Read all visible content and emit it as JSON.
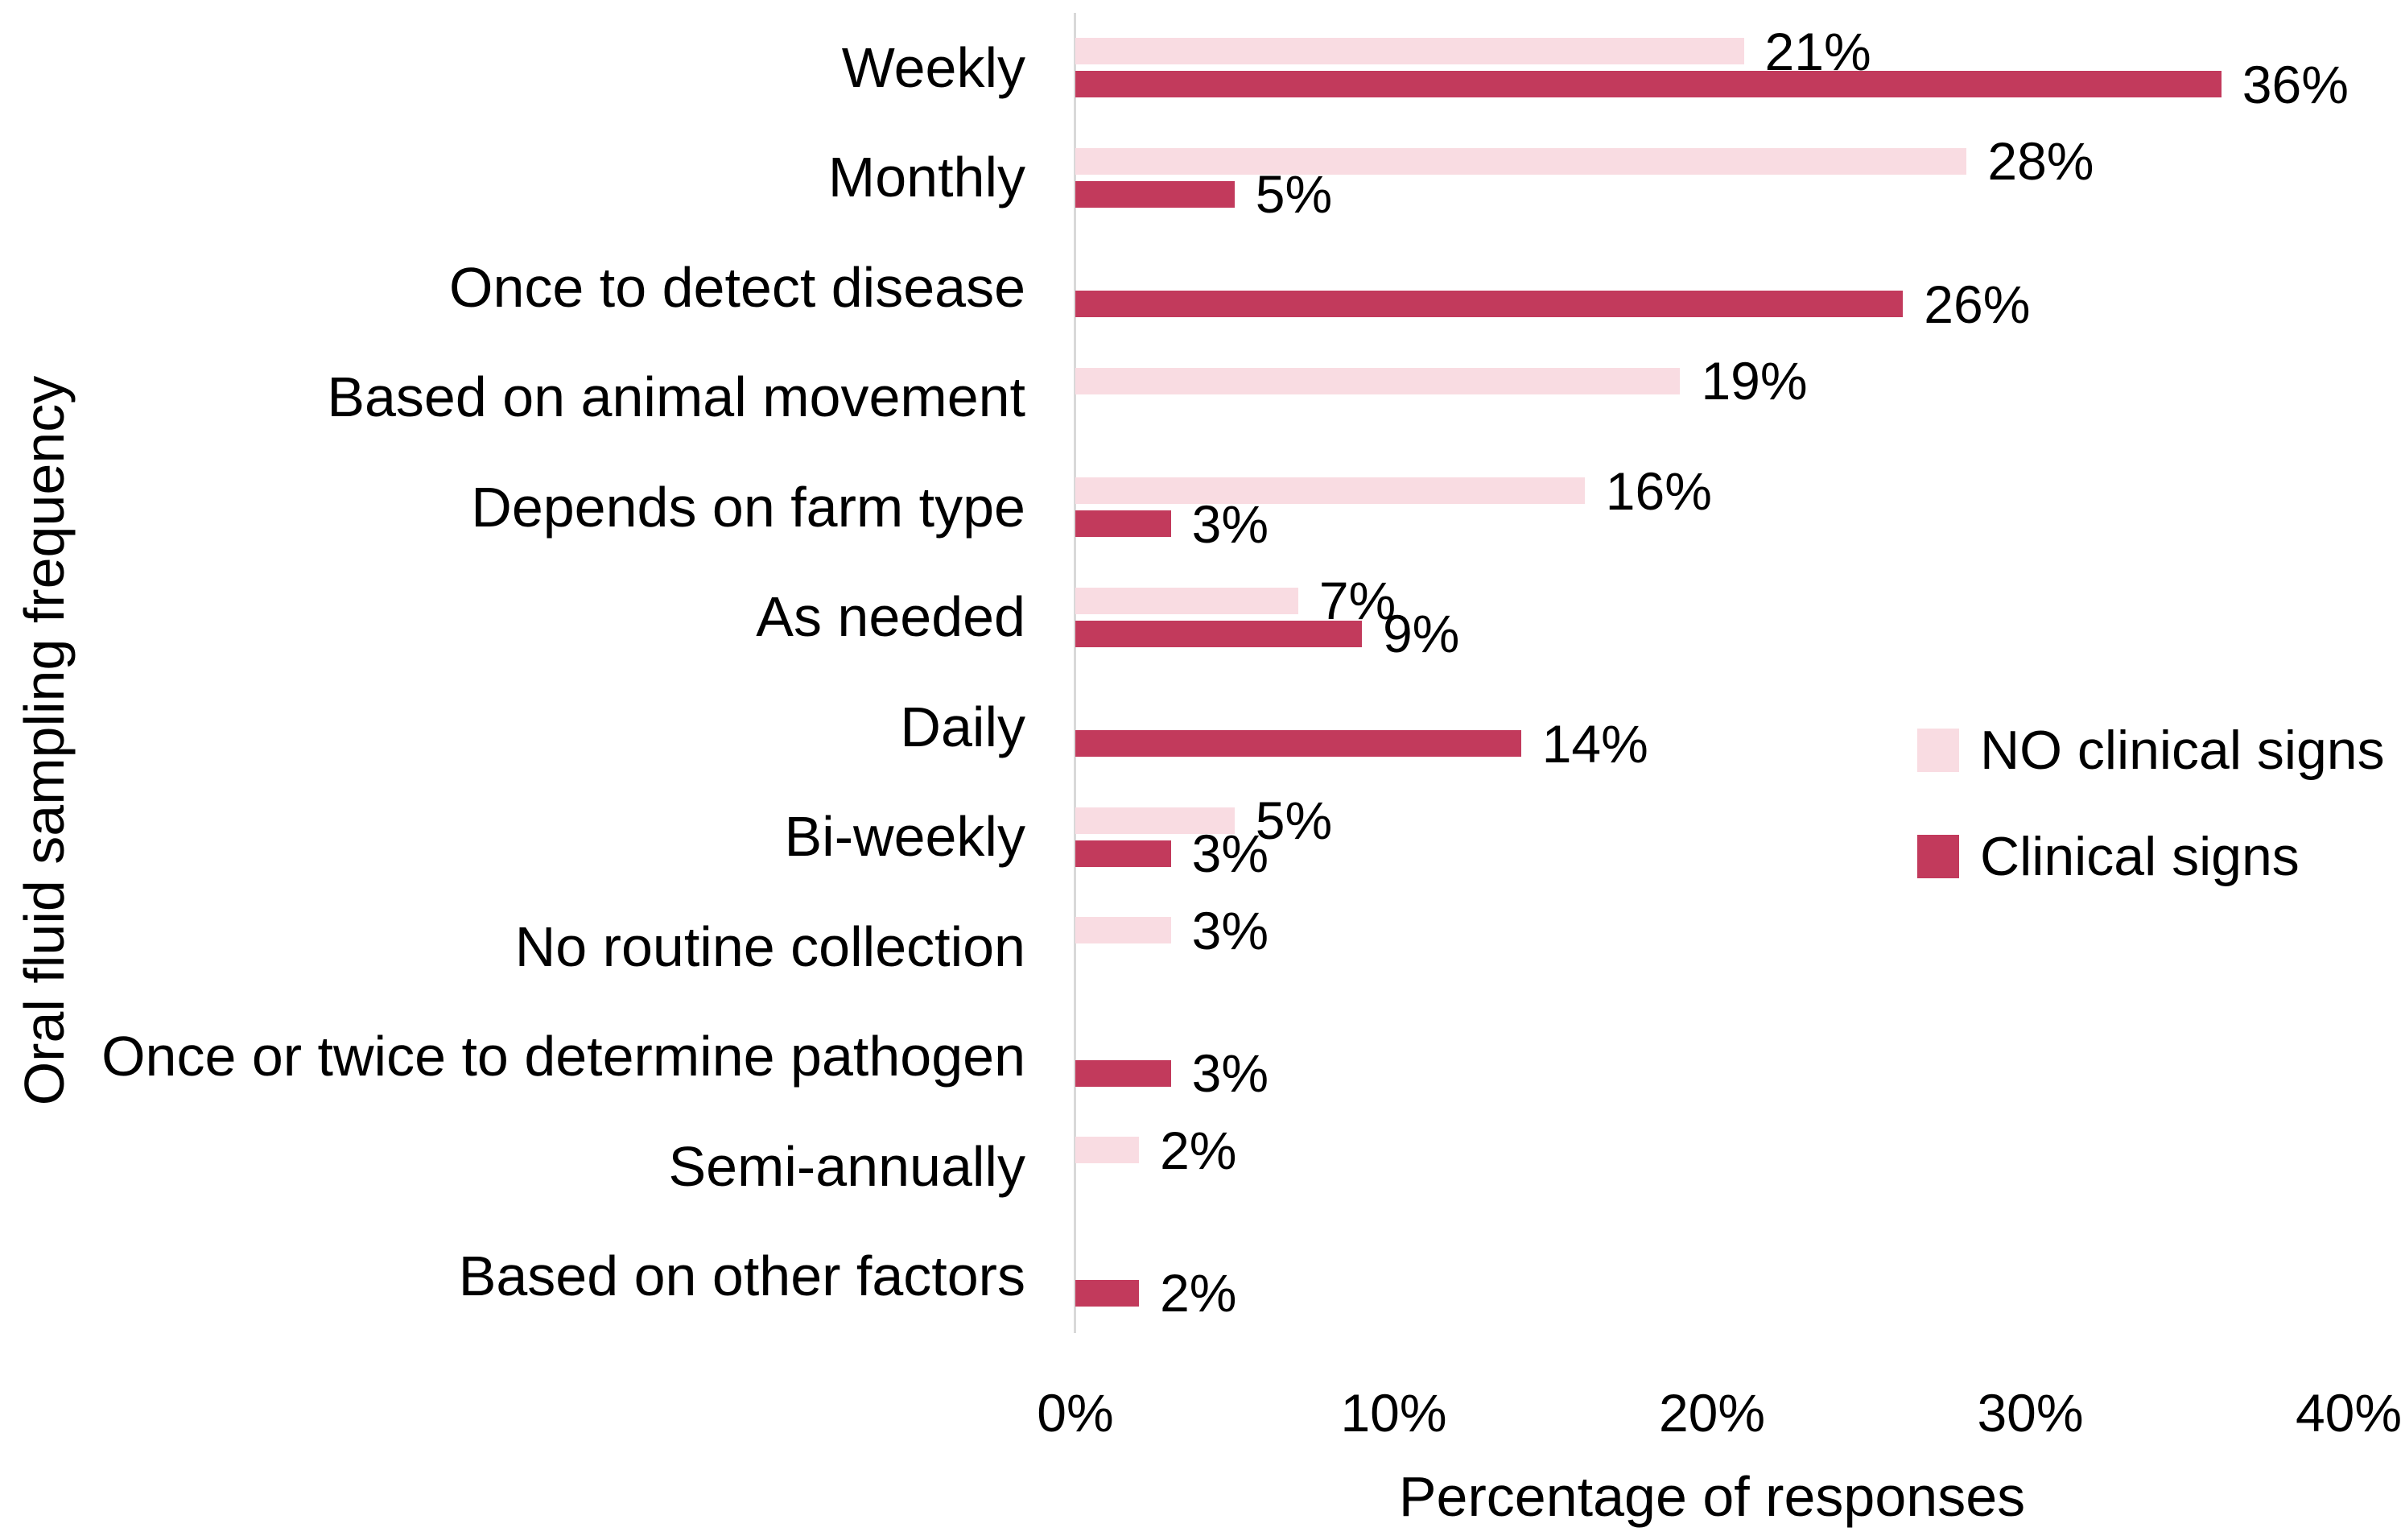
{
  "chart_data": {
    "type": "bar",
    "orientation": "horizontal",
    "xlabel": "Percentage of responses",
    "ylabel": "Oral fluid sampling frequency",
    "xlim": [
      0,
      40
    ],
    "grid": false,
    "legend_position": "middle-right",
    "axis_line_color": "#d9d9d9",
    "categories": [
      "Weekly",
      "Monthly",
      "Once to detect disease",
      "Based on animal movement",
      "Depends on farm type",
      "As needed",
      "Daily",
      "Bi-weekly",
      "No routine collection",
      "Once or twice to determine pathogen",
      "Semi-annually",
      "Based on other factors"
    ],
    "series": [
      {
        "name": "NO clinical signs",
        "color": "#f9dce2",
        "values": [
          21,
          28,
          0,
          19,
          16,
          7,
          0,
          5,
          3,
          0,
          2,
          0
        ],
        "data_labels": [
          "21%",
          "28%",
          "",
          "19%",
          "16%",
          "7%",
          "",
          "5%",
          "3%",
          "",
          "2%",
          ""
        ]
      },
      {
        "name": "Clinical signs",
        "color": "#c23a5c",
        "values": [
          36,
          5,
          26,
          0,
          3,
          9,
          14,
          3,
          0,
          3,
          0,
          2
        ],
        "data_labels": [
          "36%",
          "5%",
          "26%",
          "",
          "3%",
          "9%",
          "14%",
          "3%",
          "",
          "3%",
          "",
          "2%"
        ]
      }
    ],
    "x_ticks": [
      {
        "label": "0%",
        "value": 0
      },
      {
        "label": "10%",
        "value": 10
      },
      {
        "label": "20%",
        "value": 20
      },
      {
        "label": "30%",
        "value": 30
      },
      {
        "label": "40%",
        "value": 40
      }
    ],
    "legend": [
      {
        "name": "NO clinical signs",
        "color": "#f9dce2"
      },
      {
        "name": "Clinical signs",
        "color": "#c23a5c"
      }
    ]
  }
}
